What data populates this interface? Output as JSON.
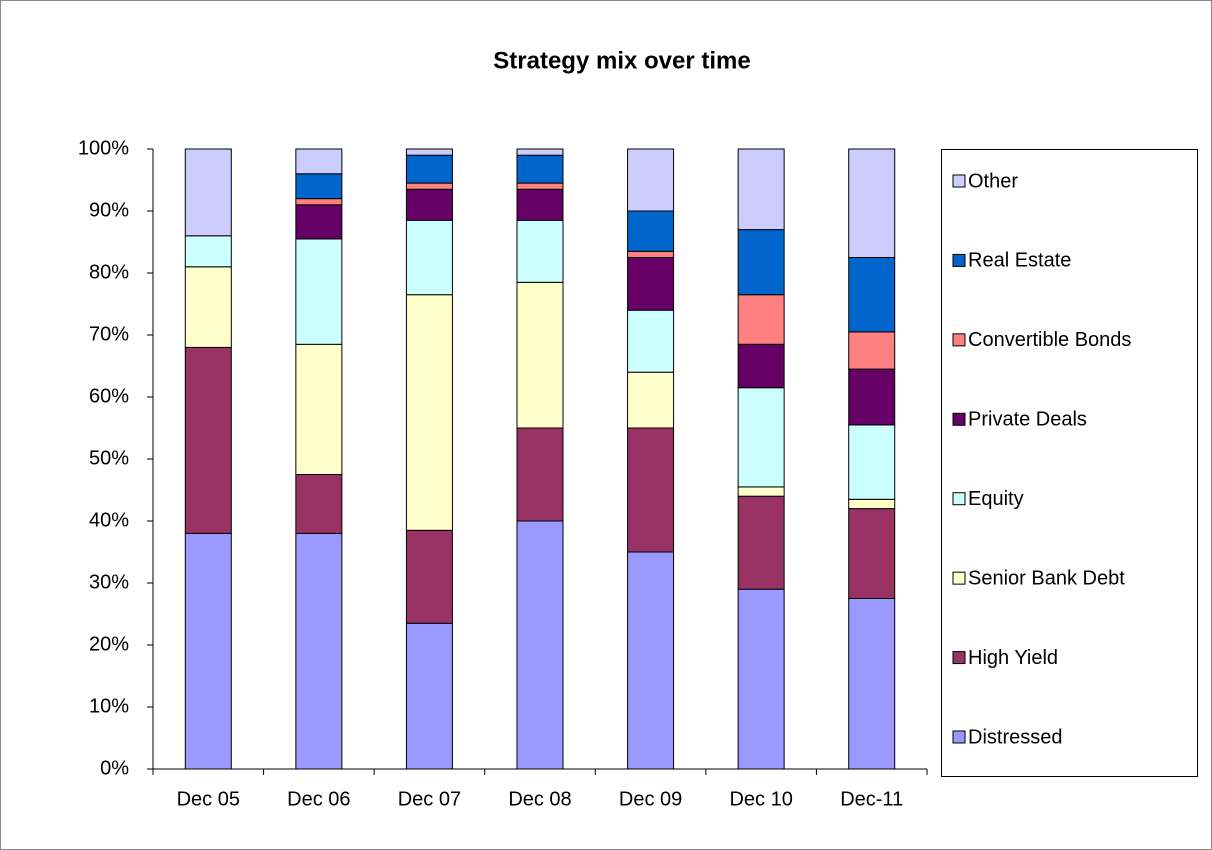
{
  "chart_data": {
    "type": "stacked_bar",
    "title": "Strategy mix over time",
    "categories": [
      "Dec 05",
      "Dec 06",
      "Dec 07",
      "Dec 08",
      "Dec 09",
      "Dec 10",
      "Dec-11"
    ],
    "series": [
      {
        "name": "Distressed",
        "color": "#9999ff",
        "values": [
          38,
          38,
          23.5,
          40,
          35,
          29,
          27.5
        ]
      },
      {
        "name": "High Yield",
        "color": "#993366",
        "values": [
          30,
          9.5,
          15,
          15,
          20,
          15,
          14.5
        ]
      },
      {
        "name": "Senior Bank Debt",
        "color": "#ffffcc",
        "values": [
          13,
          21,
          38,
          23.5,
          9,
          1.5,
          1.5
        ]
      },
      {
        "name": "Equity",
        "color": "#ccffff",
        "values": [
          5,
          17,
          12,
          10,
          10,
          16,
          12
        ]
      },
      {
        "name": "Private Deals",
        "color": "#660066",
        "values": [
          0,
          5.5,
          5,
          5,
          8.5,
          7,
          9
        ]
      },
      {
        "name": "Convertible Bonds",
        "color": "#ff8080",
        "values": [
          0,
          1,
          1,
          1,
          1,
          8,
          6
        ]
      },
      {
        "name": "Real Estate",
        "color": "#0066cc",
        "values": [
          0,
          4,
          4.5,
          4.5,
          6.5,
          10.5,
          12
        ]
      },
      {
        "name": "Other",
        "color": "#ccccff",
        "values": [
          14,
          4,
          1,
          1,
          10,
          13,
          17.5
        ]
      }
    ],
    "ylim": [
      0,
      100
    ],
    "yticks": [
      {
        "value": 0,
        "label": "0%"
      },
      {
        "value": 10,
        "label": "10%"
      },
      {
        "value": 20,
        "label": "20%"
      },
      {
        "value": 30,
        "label": "30%"
      },
      {
        "value": 40,
        "label": "40%"
      },
      {
        "value": 50,
        "label": "50%"
      },
      {
        "value": 60,
        "label": "60%"
      },
      {
        "value": 70,
        "label": "70%"
      },
      {
        "value": 80,
        "label": "80%"
      },
      {
        "value": 90,
        "label": "90%"
      },
      {
        "value": 100,
        "label": "100%"
      }
    ],
    "grid": false,
    "legend": "right"
  }
}
